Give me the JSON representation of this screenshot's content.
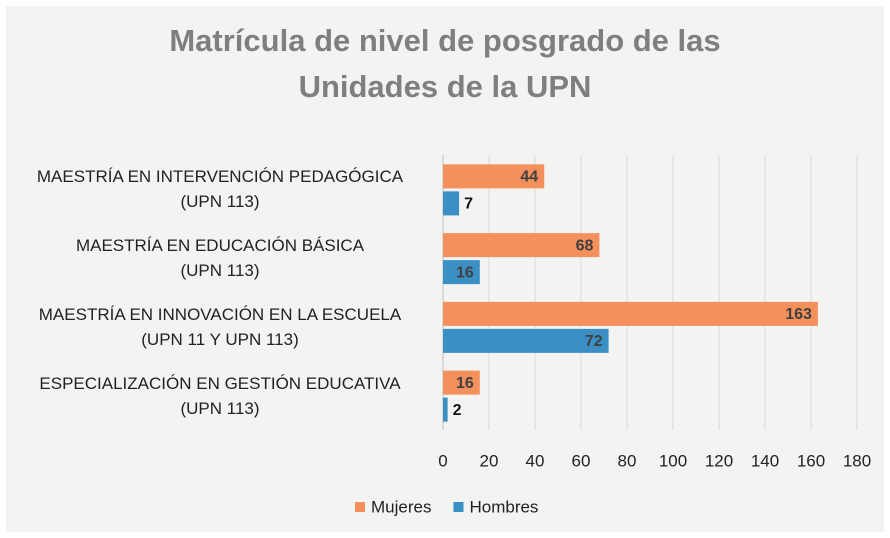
{
  "chart_data": {
    "type": "hbar",
    "title": "Matrícula de nivel de posgrado de las Unidades de la UPN",
    "categories": [
      "MAESTRÍA EN INTERVENCIÓN PEDAGÓGICA\n(UPN 113)",
      "MAESTRÍA EN EDUCACIÓN BÁSICA\n(UPN 113)",
      "MAESTRÍA EN INNOVACIÓN EN LA ESCUELA\n(UPN 11 Y UPN 113)",
      "ESPECIALIZACIÓN EN GESTIÓN EDUCATIVA\n(UPN 113)"
    ],
    "series": [
      {
        "name": "Mujeres",
        "color": "#f4905c",
        "values": [
          44,
          68,
          163,
          16
        ]
      },
      {
        "name": "Hombres",
        "color": "#3a8fc4",
        "values": [
          7,
          16,
          72,
          2
        ]
      }
    ],
    "xlim": [
      0,
      180
    ],
    "xticks": [
      0,
      20,
      40,
      60,
      80,
      100,
      120,
      140,
      160,
      180
    ],
    "grid": true,
    "legend": "bottom"
  }
}
